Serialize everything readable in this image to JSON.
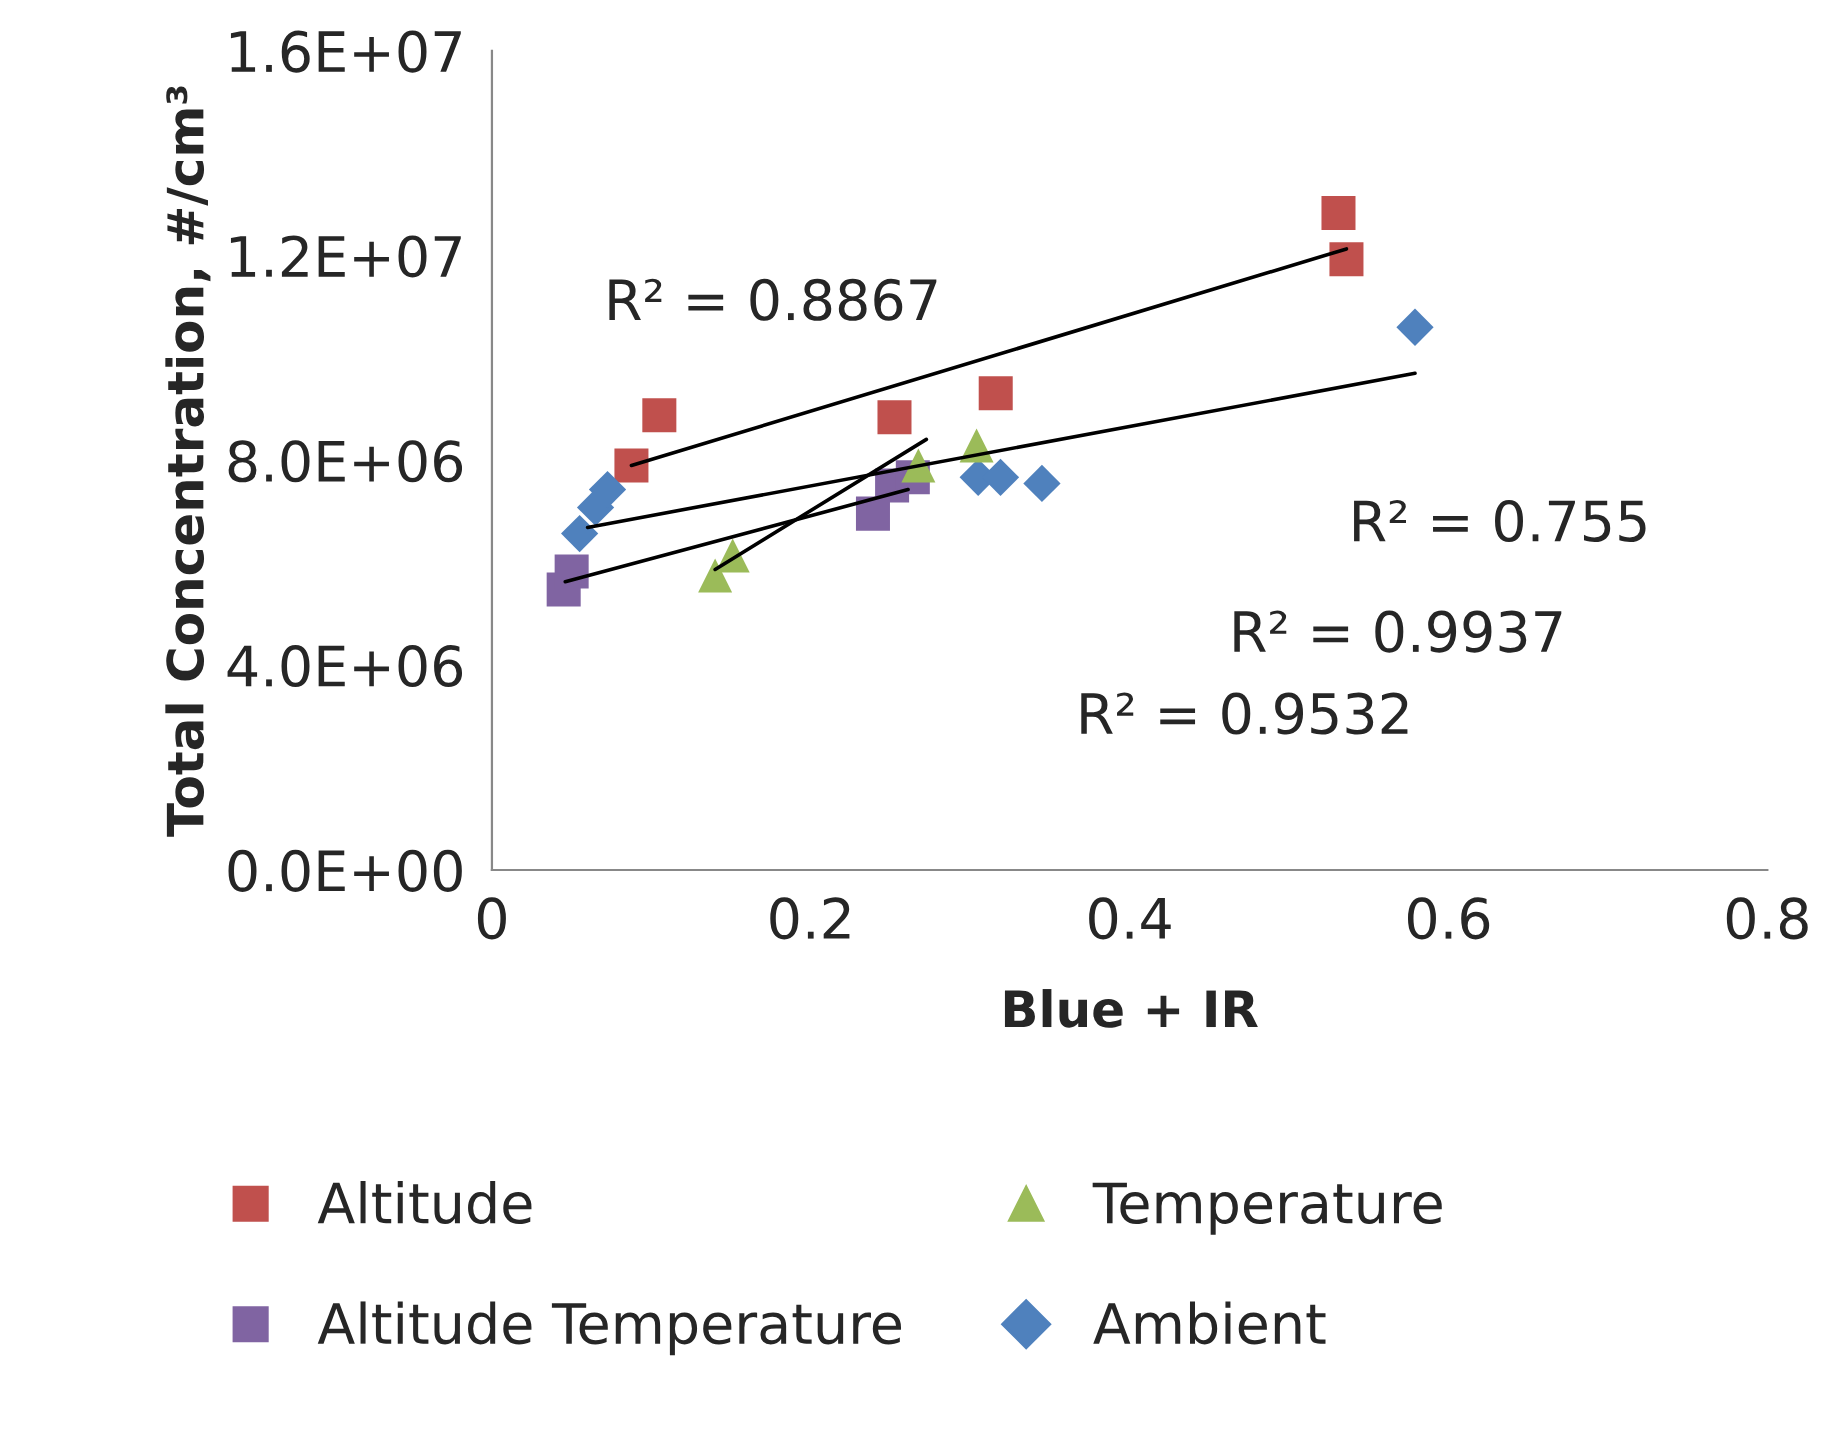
{
  "chart_data": {
    "type": "scatter",
    "xlabel": "Blue + IR",
    "ylabel": "Total Concentration, #/cm³",
    "xlim": [
      0,
      0.8
    ],
    "xticks": [
      0,
      0.2,
      0.4,
      0.6,
      0.8
    ],
    "ylim": [
      0,
      16000000
    ],
    "yticks": [
      {
        "value": 0,
        "label": "0.0E+00"
      },
      {
        "value": 4000000,
        "label": "4.0E+06"
      },
      {
        "value": 8000000,
        "label": "8.0E+06"
      },
      {
        "value": 12000000,
        "label": "1.2E+07"
      },
      {
        "value": 16000000,
        "label": "1.6E+07"
      }
    ],
    "grid": false,
    "legend": "bottom",
    "series": [
      {
        "name": "Altitude",
        "color": "#c0504d",
        "marker": "square",
        "x": [
          0.0875,
          0.105,
          0.2525,
          0.316,
          0.531,
          0.536
        ],
        "values": [
          7900000,
          8880000,
          8840000,
          9310000,
          12830000,
          11930000
        ]
      },
      {
        "name": "Temperature",
        "color": "#9bbb59",
        "marker": "triangle",
        "x": [
          0.14,
          0.151,
          0.2675,
          0.304
        ],
        "values": [
          5750000,
          6140000,
          7900000,
          8290000
        ]
      },
      {
        "name": "Altitude Temperature",
        "color": "#8064a2",
        "marker": "square",
        "x": [
          0.045,
          0.05,
          0.239,
          0.251,
          0.264
        ],
        "values": [
          5480000,
          5830000,
          6960000,
          7510000,
          7670000
        ]
      },
      {
        "name": "Ambient",
        "color": "#4f81bd",
        "marker": "diamond",
        "x": [
          0.055,
          0.065,
          0.0725,
          0.305,
          0.319,
          0.345,
          0.579
        ],
        "values": [
          6570000,
          7080000,
          7430000,
          7670000,
          7670000,
          7550000,
          10600000
        ]
      },
      {
        "type": "line",
        "color": "#000000",
        "x": [
          0.0875,
          0.536
        ],
        "values": [
          7900000,
          12130000
        ]
      },
      {
        "type": "line",
        "color": "#000000",
        "x": [
          0.06,
          0.579
        ],
        "values": [
          6690000,
          9700000
        ]
      },
      {
        "type": "line",
        "color": "#000000",
        "x": [
          0.046,
          0.261
        ],
        "values": [
          5630000,
          7430000
        ]
      },
      {
        "type": "line",
        "color": "#000000",
        "x": [
          0.14,
          0.2725
        ],
        "values": [
          5870000,
          8410000
        ]
      }
    ],
    "annotations": [
      "R² = 0.8867",
      "R² = 0.755",
      "R² = 0.9937",
      "R² = 0.9532"
    ]
  }
}
